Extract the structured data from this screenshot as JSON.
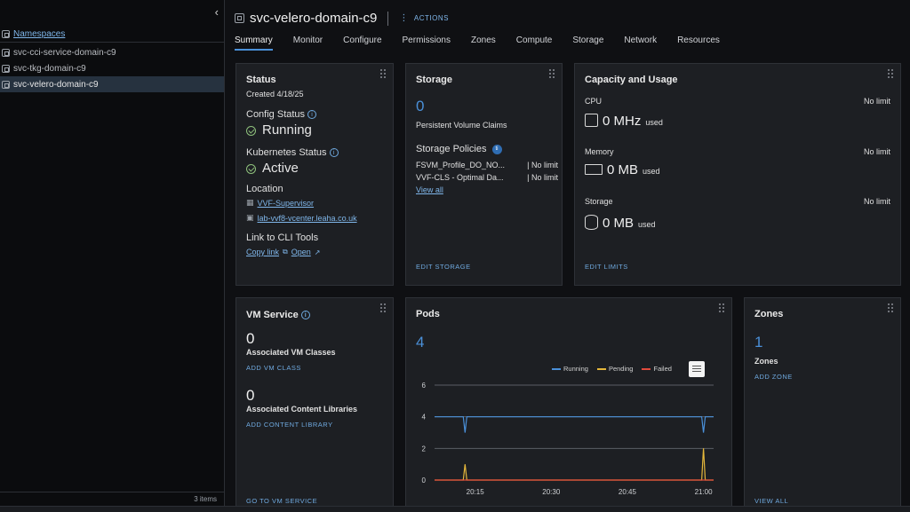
{
  "sidebar": {
    "root_label": "Namespaces",
    "items": [
      {
        "label": "svc-cci-service-domain-c9"
      },
      {
        "label": "svc-tkg-domain-c9"
      },
      {
        "label": "svc-velero-domain-c9"
      }
    ],
    "count": "3 items"
  },
  "header": {
    "title": "svc-velero-domain-c9",
    "actions_label": "ACTIONS",
    "tabs": [
      "Summary",
      "Monitor",
      "Configure",
      "Permissions",
      "Zones",
      "Compute",
      "Storage",
      "Network",
      "Resources"
    ]
  },
  "status": {
    "title": "Status",
    "created": "Created 4/18/25",
    "config_label": "Config Status",
    "config_value": "Running",
    "k8s_label": "Kubernetes Status",
    "k8s_value": "Active",
    "location_label": "Location",
    "location_links": [
      "VVF-Supervisor",
      "lab-vvf8-vcenter.leaha.co.uk"
    ],
    "cli_label": "Link to CLI Tools",
    "copy_link": "Copy link",
    "open_link": "Open"
  },
  "storage": {
    "title": "Storage",
    "pvc_count": "0",
    "pvc_label": "Persistent Volume Claims",
    "policies_label": "Storage Policies",
    "policies_badge": "ti",
    "policies": [
      {
        "name": "FSVM_Profile_DO_NO...",
        "limit": "| No limit"
      },
      {
        "name": "VVF-CLS - Optimal Da...",
        "limit": "| No limit"
      }
    ],
    "view_all": "View all",
    "footer": "EDIT STORAGE"
  },
  "capacity": {
    "title": "Capacity and Usage",
    "items": [
      {
        "label": "CPU",
        "value": "0 MHz",
        "unit": "used",
        "limit": "No limit",
        "icon": "cpu-icon"
      },
      {
        "label": "Memory",
        "value": "0 MB",
        "unit": "used",
        "limit": "No limit",
        "icon": "memory-icon"
      },
      {
        "label": "Storage",
        "value": "0 MB",
        "unit": "used",
        "limit": "No limit",
        "icon": "database-icon"
      }
    ],
    "footer": "EDIT LIMITS"
  },
  "vmservice": {
    "title": "VM Service",
    "classes_count": "0",
    "classes_label": "Associated VM Classes",
    "add_class": "ADD VM CLASS",
    "libs_count": "0",
    "libs_label": "Associated Content Libraries",
    "add_lib": "ADD CONTENT LIBRARY",
    "footer": "GO TO VM SERVICE"
  },
  "pods": {
    "title": "Pods",
    "count": "4"
  },
  "zones": {
    "title": "Zones",
    "count": "1",
    "label": "Zones",
    "add": "ADD ZONE",
    "footer": "VIEW ALL"
  },
  "chart_data": {
    "type": "line",
    "x": [
      "20:07",
      "20:15",
      "20:30",
      "20:45",
      "21:00",
      "21:02"
    ],
    "xticks": [
      "20:15",
      "20:30",
      "20:45",
      "21:00"
    ],
    "yticks": [
      "0",
      "2",
      "4",
      "6"
    ],
    "ylim": [
      0,
      6
    ],
    "series": [
      {
        "name": "Running",
        "color": "#4a90d9",
        "values": [
          4,
          4,
          4,
          4,
          4,
          4
        ],
        "dips": [
          {
            "at": "20:13",
            "value": 3
          },
          {
            "at": "21:00",
            "value": 3
          }
        ]
      },
      {
        "name": "Pending",
        "color": "#e5b73b",
        "values": [
          0,
          0,
          0,
          0,
          0,
          0
        ],
        "spikes": [
          {
            "at": "20:13",
            "value": 1
          },
          {
            "at": "21:00",
            "value": 2
          }
        ]
      },
      {
        "name": "Failed",
        "color": "#e04b3c",
        "values": [
          0,
          0,
          0,
          0,
          0,
          0
        ]
      }
    ]
  }
}
